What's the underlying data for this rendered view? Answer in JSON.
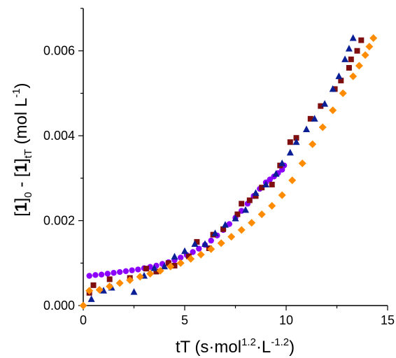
{
  "chart_data": {
    "type": "scatter",
    "title": "",
    "xlabel": {
      "text": "tT (s·mol",
      "sup1": "1.2",
      "mid": "·L",
      "sup2": "-1.2",
      "end": ")"
    },
    "ylabel": {
      "open1": "[",
      "one1": "1",
      "close1": "]",
      "sub1": "0",
      "minus": " - ",
      "open2": "[",
      "one2": "1",
      "close2": "]",
      "sub2": "tT",
      "unit": " (mol L",
      "sup": "-1",
      "end": ")"
    },
    "xlim": [
      0,
      15
    ],
    "ylim": [
      0,
      0.007
    ],
    "xticks": [
      0,
      5,
      10,
      15
    ],
    "xtick_labels": [
      "0",
      "5",
      "10",
      "15"
    ],
    "yticks": [
      0,
      0.002,
      0.004,
      0.006
    ],
    "ytick_labels": [
      "0.000",
      "0.002",
      "0.004",
      "0.006"
    ],
    "grid": false,
    "series": [
      {
        "color": "#8b00ff",
        "marker": "circle",
        "x": [
          0.3,
          0.6,
          0.9,
          1.2,
          1.5,
          1.8,
          2.1,
          2.4,
          2.7,
          3.0,
          3.3,
          3.6,
          3.9,
          4.2,
          4.5,
          4.8,
          5.1,
          5.4,
          5.7,
          6.0,
          6.3,
          6.6,
          6.9,
          7.2,
          7.5,
          7.8,
          8.1,
          8.4,
          8.7,
          9.0,
          9.2,
          9.4,
          9.6,
          9.8,
          9.9
        ],
        "y": [
          0.0007,
          0.00072,
          0.00073,
          0.00075,
          0.00077,
          0.00079,
          0.00081,
          0.00083,
          0.00085,
          0.00088,
          0.00091,
          0.00094,
          0.00098,
          0.00102,
          0.00107,
          0.00113,
          0.00119,
          0.00126,
          0.00134,
          0.00143,
          0.00153,
          0.00165,
          0.00178,
          0.00192,
          0.00207,
          0.00223,
          0.0024,
          0.00258,
          0.00275,
          0.0029,
          0.00297,
          0.00304,
          0.00312,
          0.0032,
          0.0033
        ]
      },
      {
        "color": "#7f0f0f",
        "marker": "square",
        "x": [
          0.3,
          0.5,
          1.3,
          2.3,
          3.1,
          3.6,
          4.2,
          4.5,
          5.2,
          5.6,
          6.2,
          6.4,
          6.9,
          7.6,
          7.8,
          8.2,
          8.5,
          8.8,
          9.3,
          9.7,
          10.2,
          10.5,
          11.2,
          11.7,
          12.4,
          12.7,
          13.1,
          13.2,
          13.5,
          13.7
        ],
        "y": [
          0.0003,
          0.00048,
          0.00062,
          0.00065,
          0.00087,
          0.0008,
          0.001,
          0.00094,
          0.00116,
          0.0015,
          0.00135,
          0.00167,
          0.0018,
          0.00215,
          0.0024,
          0.00248,
          0.00258,
          0.00278,
          0.00285,
          0.0033,
          0.00385,
          0.00395,
          0.0044,
          0.0047,
          0.0051,
          0.0053,
          0.0056,
          0.0058,
          0.006,
          0.00625
        ]
      },
      {
        "color": "#0a1e96",
        "marker": "triangle",
        "x": [
          0.4,
          1.0,
          1.4,
          2.5,
          3.0,
          3.5,
          4.0,
          4.5,
          5.0,
          5.5,
          6.0,
          6.5,
          7.0,
          7.5,
          8.0,
          8.5,
          9.0,
          9.5,
          9.8,
          10.2,
          10.5,
          11.0,
          11.4,
          11.9,
          12.3,
          12.6,
          12.9,
          13.1,
          13.3
        ],
        "y": [
          0.00015,
          0.00035,
          0.00042,
          0.00032,
          0.0007,
          0.00088,
          0.00092,
          0.00115,
          0.00128,
          0.00145,
          0.00145,
          0.0017,
          0.0019,
          0.00205,
          0.00225,
          0.00265,
          0.00285,
          0.0031,
          0.00335,
          0.0036,
          0.00385,
          0.00415,
          0.0044,
          0.00475,
          0.0051,
          0.0054,
          0.0058,
          0.00605,
          0.0063
        ]
      },
      {
        "color": "#ff8c00",
        "marker": "diamond",
        "x": [
          0.0,
          0.3,
          0.8,
          1.3,
          1.8,
          2.3,
          2.8,
          3.3,
          3.8,
          4.3,
          4.8,
          5.3,
          5.8,
          6.3,
          6.8,
          7.3,
          7.8,
          8.3,
          8.8,
          9.3,
          9.8,
          10.3,
          10.8,
          11.3,
          11.8,
          12.3,
          12.8,
          13.3,
          13.6,
          13.9,
          14.1,
          14.3
        ],
        "y": [
          0.0,
          0.00035,
          0.00037,
          0.00045,
          0.00053,
          0.0006,
          0.00068,
          0.00075,
          0.00082,
          0.00092,
          0.001,
          0.0011,
          0.0012,
          0.00133,
          0.00147,
          0.00162,
          0.00178,
          0.00195,
          0.00215,
          0.00235,
          0.0026,
          0.00295,
          0.00335,
          0.0038,
          0.0042,
          0.0046,
          0.005,
          0.0054,
          0.00565,
          0.0059,
          0.0061,
          0.0063
        ]
      }
    ]
  }
}
